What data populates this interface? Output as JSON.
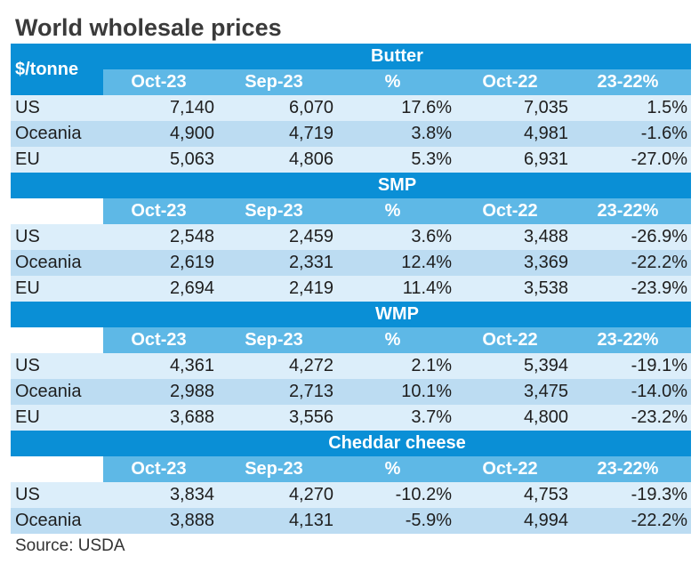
{
  "title": "World wholesale prices",
  "unit_label": "$/tonne",
  "source": "Source: USDA",
  "colors": {
    "section_bar": "#0a8fd6",
    "header_band": "#5eb8e6",
    "row_light": "#dceefa",
    "row_mid": "#bcdcf2"
  },
  "chart_data": {
    "type": "table",
    "title": "World wholesale prices",
    "unit": "$/tonne",
    "columns": [
      "Oct-23",
      "Sep-23",
      "%",
      "Oct-22",
      "23-22%"
    ],
    "sections": [
      {
        "name": "Butter",
        "rows": [
          {
            "region": "US",
            "values": [
              "7,140",
              "6,070",
              "17.6%",
              "7,035",
              "1.5%"
            ]
          },
          {
            "region": "Oceania",
            "values": [
              "4,900",
              "4,719",
              "3.8%",
              "4,981",
              "-1.6%"
            ]
          },
          {
            "region": "EU",
            "values": [
              "5,063",
              "4,806",
              "5.3%",
              "6,931",
              "-27.0%"
            ]
          }
        ]
      },
      {
        "name": "SMP",
        "rows": [
          {
            "region": "US",
            "values": [
              "2,548",
              "2,459",
              "3.6%",
              "3,488",
              "-26.9%"
            ]
          },
          {
            "region": "Oceania",
            "values": [
              "2,619",
              "2,331",
              "12.4%",
              "3,369",
              "-22.2%"
            ]
          },
          {
            "region": "EU",
            "values": [
              "2,694",
              "2,419",
              "11.4%",
              "3,538",
              "-23.9%"
            ]
          }
        ]
      },
      {
        "name": "WMP",
        "rows": [
          {
            "region": "US",
            "values": [
              "4,361",
              "4,272",
              "2.1%",
              "5,394",
              "-19.1%"
            ]
          },
          {
            "region": "Oceania",
            "values": [
              "2,988",
              "2,713",
              "10.1%",
              "3,475",
              "-14.0%"
            ]
          },
          {
            "region": "EU",
            "values": [
              "3,688",
              "3,556",
              "3.7%",
              "4,800",
              "-23.2%"
            ]
          }
        ]
      },
      {
        "name": "Cheddar cheese",
        "rows": [
          {
            "region": "US",
            "values": [
              "3,834",
              "4,270",
              "-10.2%",
              "4,753",
              "-19.3%"
            ]
          },
          {
            "region": "Oceania",
            "values": [
              "3,888",
              "4,131",
              "-5.9%",
              "4,994",
              "-22.2%"
            ]
          }
        ]
      }
    ]
  }
}
